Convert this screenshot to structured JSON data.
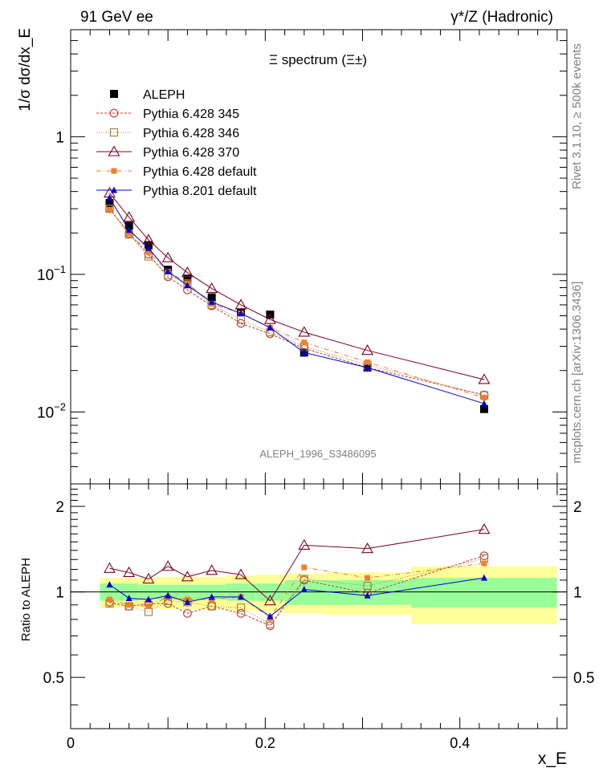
{
  "header": {
    "left": "91 GeV ee",
    "right": "γ*/Z (Hadronic)"
  },
  "side_text": {
    "upper": "Rivet 3.1.10, ≥ 500k events",
    "lower": "mcplots.cern.ch [arXiv:1306.3436]"
  },
  "chart_data": {
    "type": "line",
    "title": "Ξ spectrum (Ξ±)",
    "analysis_label": "ALEPH_1996_S3486095",
    "xlabel": "x_E",
    "ylabel": "1/σ dσ/dx_E",
    "ratio_ylabel": "Ratio to ALEPH",
    "main_panel": {
      "yscale": "log",
      "xlim": [
        0,
        0.51
      ],
      "ylim": [
        0.003,
        6
      ],
      "yticks": [
        {
          "value": 1,
          "label": "1"
        },
        {
          "value": 0.1,
          "label": "10^-1"
        },
        {
          "value": 0.01,
          "label": "10^-2"
        }
      ]
    },
    "ratio_panel": {
      "yscale": "log",
      "ylim": [
        0.33,
        2.4
      ],
      "yticks": [
        {
          "value": 2,
          "label": "2"
        },
        {
          "value": 1,
          "label": "1"
        },
        {
          "value": 0.5,
          "label": "0.5"
        }
      ]
    },
    "xticks": [
      {
        "value": 0,
        "label": "0"
      },
      {
        "value": 0.2,
        "label": "0.2"
      },
      {
        "value": 0.4,
        "label": "0.4"
      }
    ],
    "x": [
      0.04,
      0.06,
      0.08,
      0.1,
      0.12,
      0.145,
      0.175,
      0.205,
      0.24,
      0.305,
      0.425
    ],
    "bin_edges": [
      0.03,
      0.05,
      0.07,
      0.09,
      0.11,
      0.13,
      0.16,
      0.19,
      0.22,
      0.26,
      0.35,
      0.5
    ],
    "band_inner": [
      0.07,
      0.07,
      0.06,
      0.06,
      0.06,
      0.06,
      0.07,
      0.07,
      0.1,
      0.1,
      0.12
    ],
    "band_outer": [
      0.12,
      0.12,
      0.12,
      0.13,
      0.13,
      0.13,
      0.14,
      0.15,
      0.16,
      0.17,
      0.23
    ],
    "legend_position": "top-left",
    "series": [
      {
        "name": "ALEPH",
        "color": "#000000",
        "marker": "square-filled",
        "dash": "none",
        "line": false,
        "values": [
          0.33,
          0.225,
          0.163,
          0.108,
          0.093,
          0.068,
          0.053,
          0.051,
          0.027,
          0.021,
          0.0105
        ],
        "ratio": [
          1.0,
          1.0,
          1.0,
          1.0,
          1.0,
          1.0,
          1.0,
          1.0,
          1.0,
          1.0,
          1.0
        ]
      },
      {
        "name": "Pythia 6.428 345",
        "color": "#c0392b",
        "marker": "circle-open",
        "dash": "3,2",
        "line": true,
        "values": [
          0.3,
          0.198,
          0.14,
          0.096,
          0.077,
          0.059,
          0.044,
          0.037,
          0.029,
          0.021,
          0.0133
        ],
        "ratio": [
          0.92,
          0.89,
          0.91,
          0.91,
          0.84,
          0.89,
          0.84,
          0.76,
          1.1,
          0.99,
          1.34
        ]
      },
      {
        "name": "Pythia 6.428 346",
        "color": "#a07a3a",
        "marker": "square-open",
        "dash": "1,2",
        "line": true,
        "values": [
          0.3,
          0.195,
          0.135,
          0.099,
          0.086,
          0.06,
          0.047,
          0.038,
          0.03,
          0.022,
          0.0132
        ],
        "ratio": [
          0.91,
          0.89,
          0.85,
          0.93,
          0.92,
          0.89,
          0.88,
          0.77,
          1.11,
          1.05,
          1.31
        ]
      },
      {
        "name": "Pythia 6.428 370",
        "color": "#800020",
        "marker": "triangle-open",
        "dash": "none",
        "line": true,
        "values": [
          0.39,
          0.26,
          0.178,
          0.132,
          0.103,
          0.079,
          0.06,
          0.047,
          0.038,
          0.028,
          0.0172
        ],
        "ratio": [
          1.21,
          1.17,
          1.11,
          1.23,
          1.13,
          1.19,
          1.15,
          0.93,
          1.46,
          1.42,
          1.66
        ]
      },
      {
        "name": "Pythia 6.428 default",
        "color": "#f07f2a",
        "marker": "square-filled-small",
        "dash": "6,3,1,3",
        "line": true,
        "values": [
          0.295,
          0.199,
          0.145,
          0.105,
          0.086,
          0.061,
          0.052,
          0.041,
          0.032,
          0.023,
          0.0127
        ],
        "ratio": [
          0.94,
          0.9,
          0.89,
          0.96,
          0.94,
          0.94,
          0.96,
          0.81,
          1.22,
          1.12,
          1.26
        ]
      },
      {
        "name": "Pythia 8.201 default",
        "color": "#0000cc",
        "marker": "triangle-filled",
        "dash": "none",
        "line": true,
        "values": [
          0.36,
          0.21,
          0.155,
          0.105,
          0.083,
          0.063,
          0.052,
          0.041,
          0.027,
          0.021,
          0.0115
        ],
        "ratio": [
          1.06,
          0.95,
          0.94,
          0.97,
          0.92,
          0.96,
          0.96,
          0.82,
          1.02,
          0.97,
          1.12
        ]
      }
    ]
  }
}
